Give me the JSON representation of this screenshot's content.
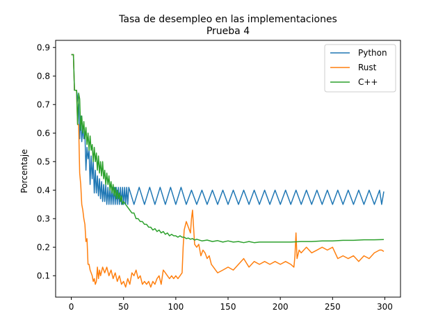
{
  "chart_data": {
    "type": "line",
    "title": "Tasa de desempleo en las implementaciones",
    "subtitle": "Prueba 4",
    "xlabel": "",
    "ylabel": "Porcentaje",
    "xlim": [
      -15,
      315
    ],
    "ylim": [
      0.025,
      0.925
    ],
    "x_ticks": [
      0,
      50,
      100,
      150,
      200,
      250,
      300
    ],
    "y_ticks": [
      0.1,
      0.2,
      0.3,
      0.4,
      0.5,
      0.6,
      0.7,
      0.8,
      0.9
    ],
    "grid": false,
    "legend_position": "top-right",
    "series": [
      {
        "name": "Python",
        "color": "#1f77b4",
        "x": [
          0,
          2,
          3,
          5,
          7,
          8,
          9,
          10,
          11,
          12,
          13,
          14,
          15,
          16,
          17,
          18,
          19,
          20,
          21,
          22,
          23,
          24,
          25,
          26,
          27,
          28,
          29,
          30,
          31,
          32,
          33,
          34,
          35,
          36,
          37,
          38,
          39,
          40,
          41,
          42,
          43,
          44,
          45,
          46,
          47,
          48,
          49,
          50,
          51,
          52,
          53,
          54,
          55,
          60,
          65,
          70,
          75,
          80,
          85,
          90,
          95,
          100,
          105,
          110,
          115,
          120,
          125,
          130,
          135,
          140,
          145,
          150,
          155,
          160,
          165,
          170,
          175,
          180,
          185,
          190,
          195,
          200,
          205,
          210,
          215,
          220,
          225,
          230,
          235,
          240,
          245,
          250,
          255,
          260,
          265,
          270,
          275,
          280,
          285,
          290,
          295,
          297,
          299
        ],
        "values": [
          0.875,
          0.875,
          0.75,
          0.75,
          0.7,
          0.58,
          0.66,
          0.57,
          0.62,
          0.58,
          0.6,
          0.47,
          0.55,
          0.51,
          0.54,
          0.42,
          0.52,
          0.44,
          0.5,
          0.39,
          0.47,
          0.39,
          0.45,
          0.38,
          0.44,
          0.37,
          0.43,
          0.36,
          0.42,
          0.36,
          0.42,
          0.35,
          0.41,
          0.35,
          0.41,
          0.35,
          0.41,
          0.35,
          0.41,
          0.35,
          0.41,
          0.35,
          0.41,
          0.35,
          0.41,
          0.35,
          0.41,
          0.35,
          0.41,
          0.35,
          0.41,
          0.35,
          0.41,
          0.35,
          0.41,
          0.35,
          0.41,
          0.35,
          0.41,
          0.35,
          0.41,
          0.35,
          0.41,
          0.35,
          0.4,
          0.35,
          0.4,
          0.35,
          0.4,
          0.35,
          0.4,
          0.35,
          0.4,
          0.35,
          0.4,
          0.35,
          0.4,
          0.35,
          0.4,
          0.35,
          0.4,
          0.35,
          0.4,
          0.35,
          0.4,
          0.35,
          0.4,
          0.35,
          0.4,
          0.35,
          0.4,
          0.35,
          0.4,
          0.35,
          0.4,
          0.35,
          0.4,
          0.35,
          0.4,
          0.35,
          0.4,
          0.35,
          0.395
        ]
      },
      {
        "name": "Rust",
        "color": "#ff7f0e",
        "x": [
          0,
          2,
          3,
          5,
          6,
          7,
          8,
          9,
          10,
          11,
          12,
          13,
          14,
          15,
          16,
          17,
          18,
          19,
          20,
          21,
          22,
          23,
          24,
          25,
          26,
          27,
          28,
          30,
          32,
          34,
          36,
          38,
          40,
          42,
          44,
          46,
          48,
          50,
          52,
          54,
          56,
          58,
          60,
          62,
          64,
          66,
          68,
          70,
          72,
          74,
          76,
          78,
          80,
          82,
          84,
          86,
          88,
          90,
          92,
          94,
          96,
          98,
          100,
          102,
          104,
          106,
          107,
          108,
          110,
          112,
          114,
          115,
          116,
          118,
          120,
          122,
          124,
          126,
          128,
          130,
          132,
          134,
          136,
          138,
          140,
          145,
          150,
          155,
          160,
          165,
          170,
          175,
          180,
          185,
          190,
          195,
          200,
          205,
          210,
          213,
          214,
          215,
          216,
          218,
          220,
          225,
          230,
          235,
          240,
          245,
          250,
          255,
          260,
          265,
          270,
          275,
          280,
          285,
          290,
          295,
          297,
          299
        ],
        "values": [
          0.875,
          0.875,
          0.75,
          0.75,
          0.63,
          0.63,
          0.46,
          0.42,
          0.35,
          0.33,
          0.3,
          0.28,
          0.22,
          0.23,
          0.14,
          0.14,
          0.12,
          0.11,
          0.1,
          0.08,
          0.09,
          0.07,
          0.08,
          0.13,
          0.09,
          0.12,
          0.1,
          0.13,
          0.11,
          0.13,
          0.1,
          0.12,
          0.09,
          0.11,
          0.08,
          0.1,
          0.07,
          0.08,
          0.06,
          0.09,
          0.07,
          0.11,
          0.1,
          0.12,
          0.09,
          0.1,
          0.07,
          0.08,
          0.07,
          0.08,
          0.06,
          0.08,
          0.07,
          0.09,
          0.1,
          0.07,
          0.12,
          0.11,
          0.1,
          0.09,
          0.1,
          0.09,
          0.1,
          0.09,
          0.1,
          0.11,
          0.2,
          0.26,
          0.29,
          0.27,
          0.25,
          0.3,
          0.33,
          0.21,
          0.2,
          0.21,
          0.17,
          0.19,
          0.18,
          0.16,
          0.17,
          0.14,
          0.13,
          0.12,
          0.11,
          0.12,
          0.13,
          0.12,
          0.14,
          0.16,
          0.13,
          0.15,
          0.14,
          0.15,
          0.14,
          0.15,
          0.14,
          0.15,
          0.14,
          0.13,
          0.17,
          0.25,
          0.16,
          0.19,
          0.18,
          0.2,
          0.18,
          0.19,
          0.2,
          0.19,
          0.2,
          0.16,
          0.17,
          0.16,
          0.17,
          0.15,
          0.17,
          0.16,
          0.18,
          0.19,
          0.19,
          0.185
        ]
      },
      {
        "name": "C++",
        "color": "#2ca02c",
        "x": [
          0,
          2,
          3,
          5,
          6,
          7,
          8,
          9,
          10,
          11,
          12,
          13,
          14,
          15,
          16,
          17,
          18,
          19,
          20,
          21,
          22,
          23,
          24,
          25,
          26,
          27,
          28,
          29,
          30,
          31,
          32,
          33,
          34,
          35,
          36,
          37,
          38,
          39,
          40,
          41,
          42,
          43,
          44,
          45,
          46,
          47,
          48,
          49,
          50,
          52,
          54,
          56,
          58,
          60,
          62,
          64,
          66,
          68,
          70,
          72,
          74,
          76,
          78,
          80,
          82,
          84,
          86,
          88,
          90,
          92,
          94,
          96,
          98,
          100,
          102,
          104,
          106,
          108,
          110,
          112,
          114,
          116,
          118,
          120,
          125,
          130,
          135,
          140,
          145,
          150,
          155,
          160,
          165,
          170,
          175,
          180,
          190,
          200,
          210,
          220,
          230,
          240,
          250,
          260,
          270,
          280,
          290,
          299
        ],
        "values": [
          0.875,
          0.875,
          0.75,
          0.75,
          0.63,
          0.74,
          0.72,
          0.61,
          0.66,
          0.6,
          0.64,
          0.58,
          0.62,
          0.56,
          0.6,
          0.54,
          0.59,
          0.54,
          0.56,
          0.5,
          0.55,
          0.5,
          0.53,
          0.47,
          0.52,
          0.46,
          0.5,
          0.45,
          0.5,
          0.44,
          0.47,
          0.42,
          0.46,
          0.42,
          0.45,
          0.4,
          0.43,
          0.39,
          0.42,
          0.38,
          0.41,
          0.37,
          0.4,
          0.37,
          0.39,
          0.36,
          0.38,
          0.35,
          0.36,
          0.35,
          0.34,
          0.33,
          0.32,
          0.32,
          0.3,
          0.3,
          0.29,
          0.29,
          0.28,
          0.28,
          0.27,
          0.27,
          0.26,
          0.265,
          0.255,
          0.26,
          0.25,
          0.255,
          0.245,
          0.25,
          0.24,
          0.245,
          0.24,
          0.24,
          0.235,
          0.24,
          0.235,
          0.235,
          0.23,
          0.232,
          0.228,
          0.23,
          0.225,
          0.228,
          0.222,
          0.225,
          0.22,
          0.223,
          0.218,
          0.222,
          0.218,
          0.22,
          0.216,
          0.22,
          0.216,
          0.218,
          0.218,
          0.218,
          0.218,
          0.22,
          0.22,
          0.222,
          0.222,
          0.224,
          0.224,
          0.226,
          0.226,
          0.227
        ]
      }
    ]
  }
}
